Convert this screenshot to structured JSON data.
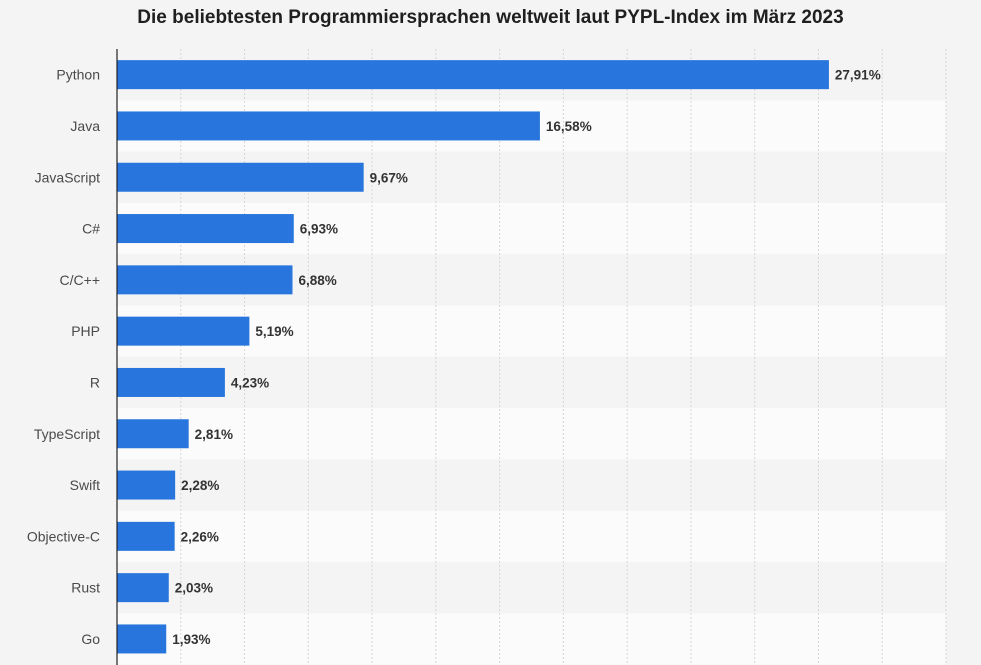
{
  "chart_data": {
    "type": "bar",
    "orientation": "horizontal",
    "title": "Die beliebtesten Programmiersprachen weltweit laut PYPL-Index im März 2023",
    "categories": [
      "Python",
      "Java",
      "JavaScript",
      "C#",
      "C/C++",
      "PHP",
      "R",
      "TypeScript",
      "Swift",
      "Objective-C",
      "Rust",
      "Go"
    ],
    "values": [
      27.91,
      16.58,
      9.67,
      6.93,
      6.88,
      5.19,
      4.23,
      2.81,
      2.28,
      2.26,
      2.03,
      1.93
    ],
    "value_labels": [
      "27,91%",
      "16,58%",
      "9,67%",
      "6,93%",
      "6,88%",
      "5,19%",
      "4,23%",
      "2,81%",
      "2,28%",
      "2,26%",
      "2,03%",
      "1,93%"
    ],
    "xlim": [
      0,
      32.5
    ],
    "grid": true,
    "legend": "none",
    "bar_color": "#2876dd"
  }
}
